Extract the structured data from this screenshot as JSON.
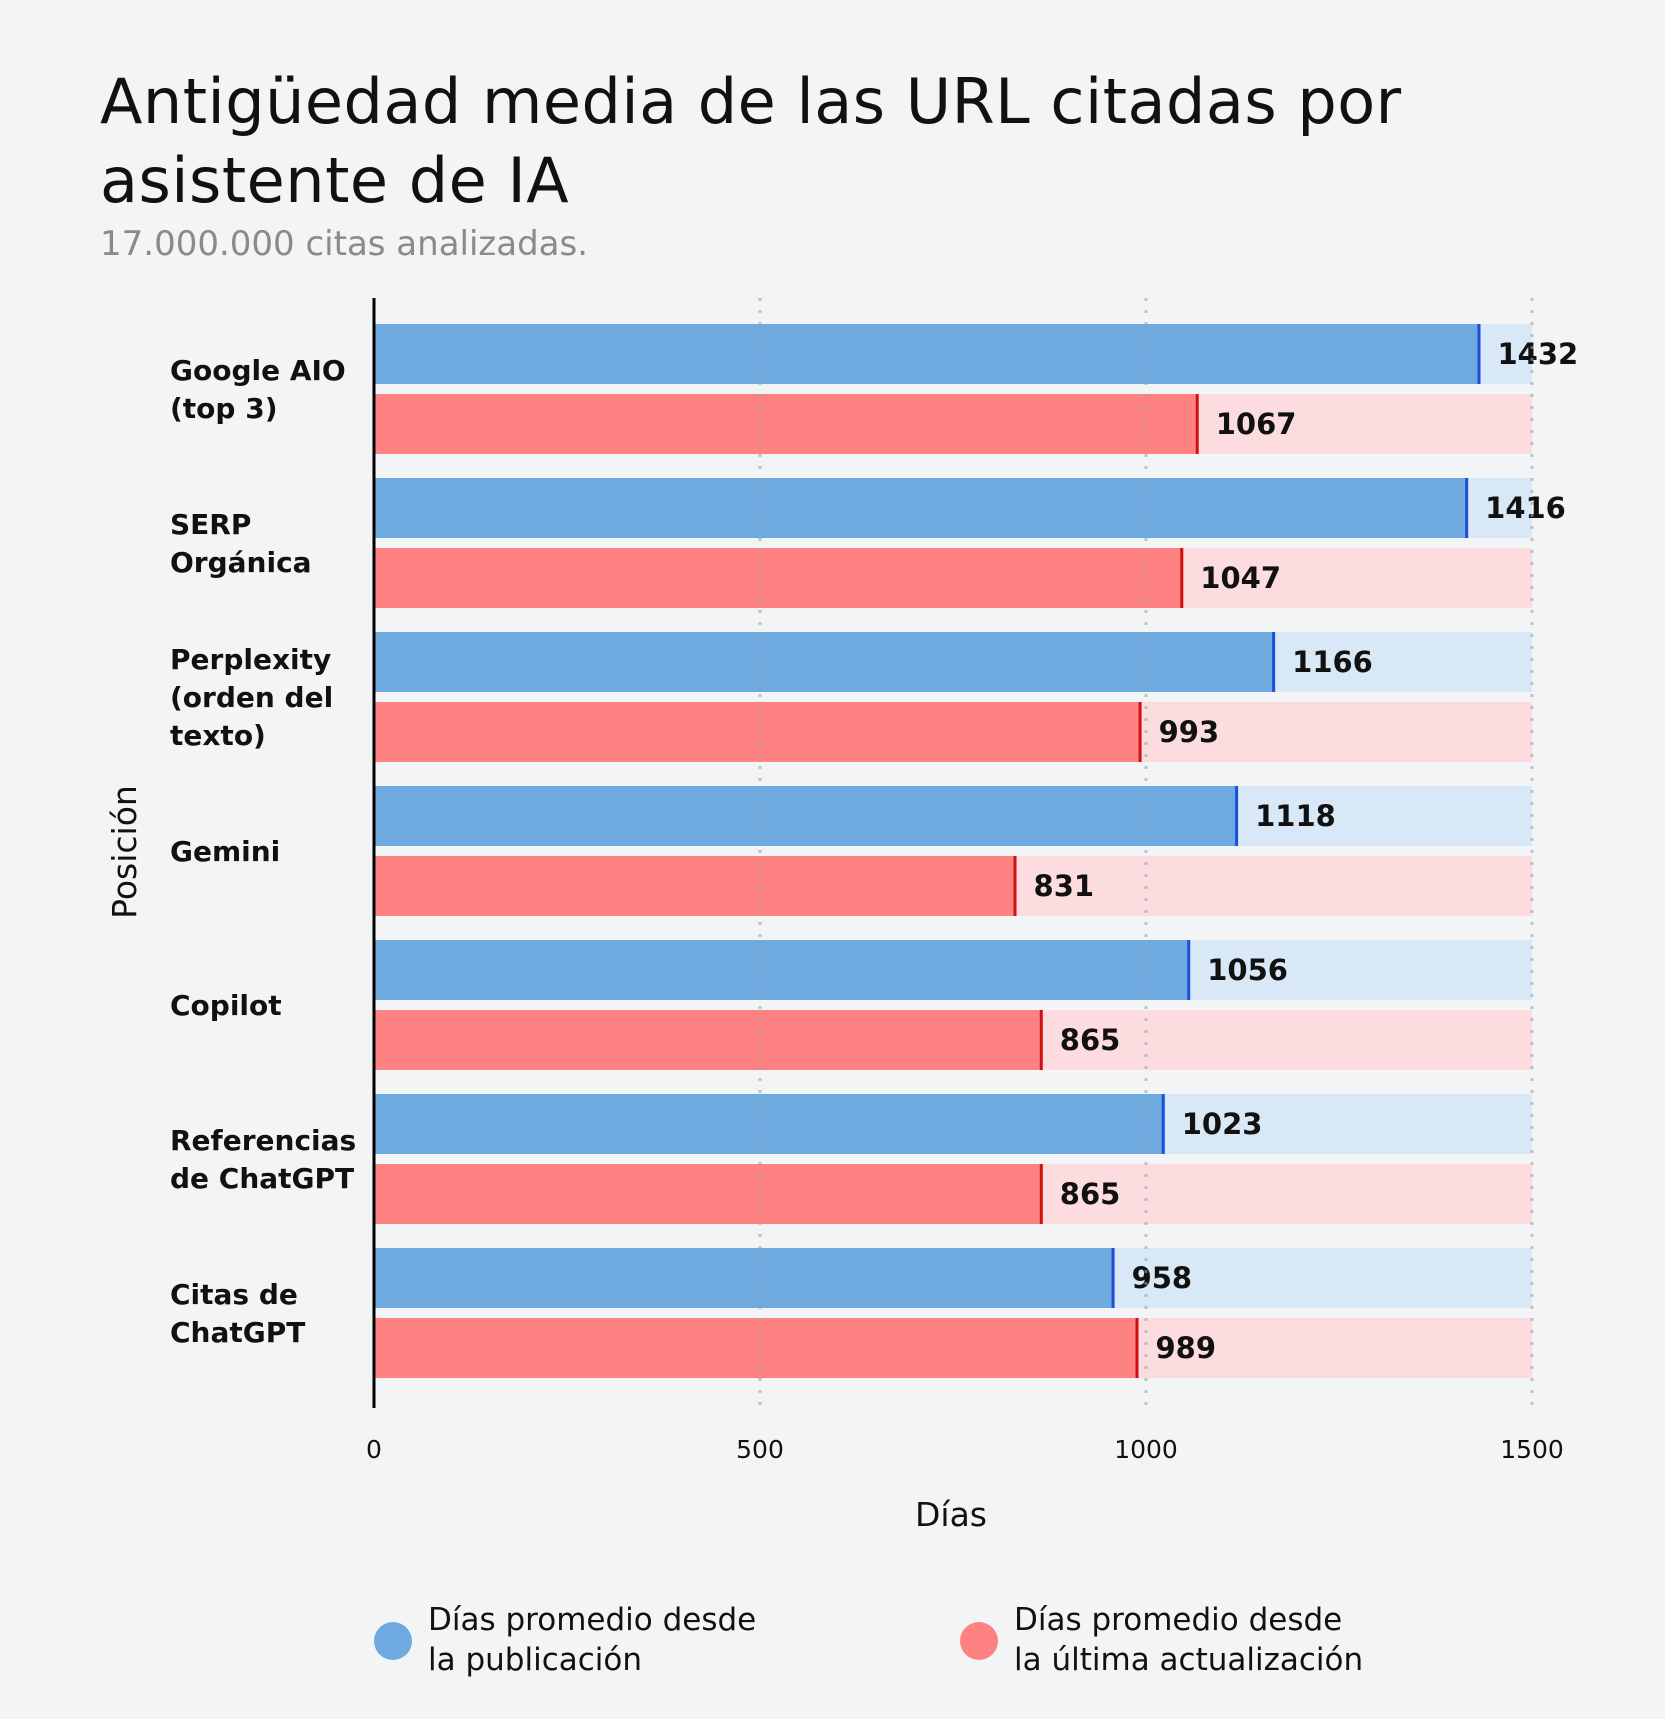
{
  "chart_data": {
    "type": "bar",
    "orientation": "horizontal",
    "title": "Antigüedad media de las URL citadas por asistente de IA",
    "subtitle": "17.000.000 citas analizadas.",
    "xlabel": "Días",
    "ylabel": "Posición",
    "xlim": [
      0,
      1500
    ],
    "xticks": [
      "0",
      "500",
      "1000",
      "1500"
    ],
    "grid": "vertical dotted",
    "legend_position": "bottom",
    "categories": [
      [
        "Google AIO",
        "(top 3)"
      ],
      [
        "SERP",
        "Orgánica"
      ],
      [
        "Perplexity",
        "(orden del",
        "texto)"
      ],
      [
        "Gemini"
      ],
      [
        "Copilot"
      ],
      [
        "Referencias",
        "de ChatGPT"
      ],
      [
        "Citas de",
        "ChatGPT"
      ]
    ],
    "series": [
      {
        "name": "Días promedio desde la publicación",
        "legend_lines": [
          "Días promedio desde",
          "la publicación"
        ],
        "color": "#6eaae0",
        "marker_color": "#1a4fd6",
        "track_color": "#d9e8f7",
        "values": [
          1432,
          1416,
          1166,
          1118,
          1056,
          1023,
          958
        ]
      },
      {
        "name": "Días promedio desde la última actualización",
        "legend_lines": [
          "Días promedio desde",
          "la última actualización"
        ],
        "color": "#ff8282",
        "marker_color": "#d10f0f",
        "track_color": "#fddcdf",
        "values": [
          1067,
          1047,
          993,
          831,
          865,
          865,
          989
        ]
      }
    ]
  }
}
